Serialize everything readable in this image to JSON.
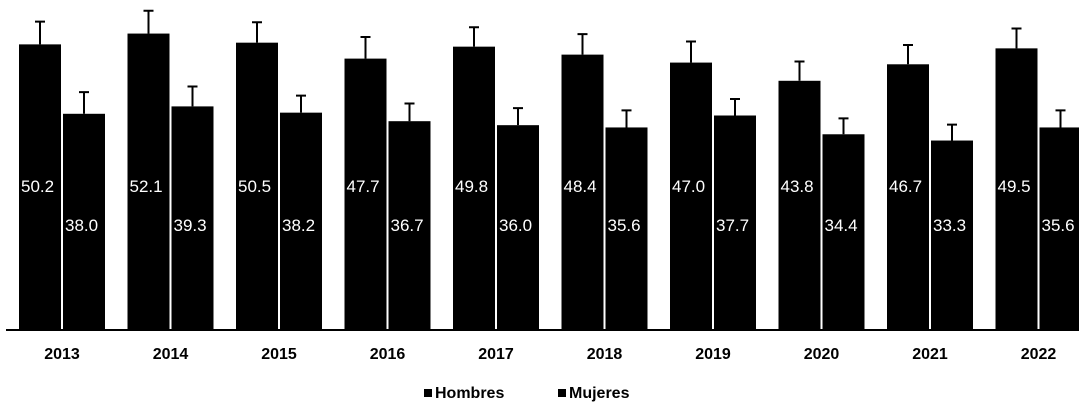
{
  "chart_data": {
    "type": "bar",
    "title": "",
    "xlabel": "",
    "ylabel": "",
    "categories": [
      "2013",
      "2014",
      "2015",
      "2016",
      "2017",
      "2018",
      "2019",
      "2020",
      "2021",
      "2022"
    ],
    "series": [
      {
        "name": "Hombres",
        "color": "#000000",
        "values": [
          50.2,
          52.1,
          50.5,
          47.7,
          49.8,
          48.4,
          47.0,
          43.8,
          46.7,
          49.5
        ],
        "error_upper": [
          54.2,
          56.1,
          54.1,
          51.5,
          53.2,
          52.0,
          50.7,
          47.2,
          50.1,
          53.0
        ],
        "labels": [
          "50.2",
          "52.1",
          "50.5",
          "47.7",
          "49.8",
          "48.4",
          "47.0",
          "43.8",
          "46.7",
          "49.5"
        ]
      },
      {
        "name": "Mujeres",
        "color": "#000000",
        "values": [
          38.0,
          39.3,
          38.2,
          36.7,
          36.0,
          35.6,
          37.7,
          34.4,
          33.3,
          35.6
        ],
        "error_upper": [
          41.8,
          42.8,
          41.2,
          39.8,
          39.0,
          38.6,
          40.6,
          37.2,
          36.1,
          38.6
        ],
        "labels": [
          "38.0",
          "39.3",
          "38.2",
          "36.7",
          "36.0",
          "35.6",
          "37.7",
          "34.4",
          "33.3",
          "35.6"
        ]
      }
    ],
    "ylim": [
      0,
      58
    ],
    "grid": false,
    "legend_position": "bottom-center"
  }
}
